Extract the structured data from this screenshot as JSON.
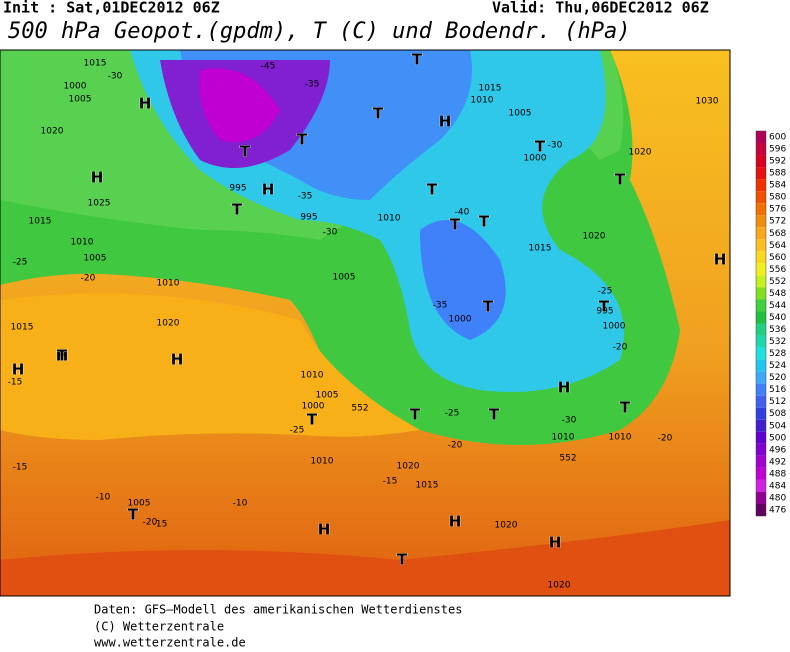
{
  "header": {
    "init": "Init : Sat,01DEC2012 06Z",
    "valid": "Valid: Thu,06DEC2012 06Z",
    "title": "500 hPa Geopot.(gpdm), T (C) und Bodendr. (hPa)"
  },
  "colorbar": {
    "labels": [
      600,
      596,
      592,
      588,
      584,
      580,
      576,
      572,
      568,
      564,
      560,
      556,
      552,
      548,
      544,
      540,
      536,
      532,
      528,
      524,
      520,
      516,
      512,
      508,
      504,
      500,
      496,
      492,
      488,
      484,
      480,
      476
    ],
    "colors": [
      "#b0005a",
      "#c8003c",
      "#d80020",
      "#e81010",
      "#f03000",
      "#f05000",
      "#f07000",
      "#f08c10",
      "#f8a818",
      "#f8c020",
      "#f8d820",
      "#f0f020",
      "#c8f020",
      "#80e020",
      "#40d040",
      "#20c040",
      "#20d080",
      "#20d8b0",
      "#20e0e0",
      "#20c8f0",
      "#40a8f8",
      "#4080f8",
      "#4060f0",
      "#3040e0",
      "#4020d0",
      "#6000d0",
      "#8000d0",
      "#a000d0",
      "#c000d0",
      "#d020e0",
      "#900090",
      "#600060"
    ]
  },
  "map": {
    "labels": [
      "H",
      "H",
      "T",
      "T",
      "T",
      "H",
      "T",
      "T",
      "T",
      "T",
      "T",
      "H",
      "T",
      "T",
      "H",
      "T",
      "H",
      "T",
      "T",
      "H",
      "T",
      "T",
      "H",
      "H",
      "T",
      "H",
      "T",
      "H",
      "T",
      "H",
      "T",
      "1015",
      "1000",
      "1005",
      "1020",
      "1025",
      "1015",
      "1010",
      "1005",
      "1010",
      "1020",
      "1015",
      "1010",
      "1000",
      "995",
      "995",
      "1005",
      "1010",
      "1015",
      "1020",
      "1005",
      "1000",
      "1010",
      "1015",
      "1010",
      "1005",
      "1000",
      "995",
      "1000",
      "1010",
      "1020",
      "1030",
      "1015",
      "1020",
      "1005",
      "1010",
      "1020",
      "1020",
      "-30",
      "-35",
      "-40",
      "-45",
      "-35",
      "-30",
      "-25",
      "-20",
      "-15",
      "-20",
      "-25",
      "-30",
      "-35",
      "-30",
      "-25",
      "-20",
      "-15",
      "-10",
      "-15",
      "-20",
      "-10",
      "-15",
      "-25",
      "-20",
      "552",
      "552"
    ]
  },
  "footer": {
    "line1": "Daten: GFS—Modell des amerikanischen Wetterdienstes",
    "line2": "(C) Wetterzentrale",
    "line3": "www.wetterzentrale.de"
  }
}
